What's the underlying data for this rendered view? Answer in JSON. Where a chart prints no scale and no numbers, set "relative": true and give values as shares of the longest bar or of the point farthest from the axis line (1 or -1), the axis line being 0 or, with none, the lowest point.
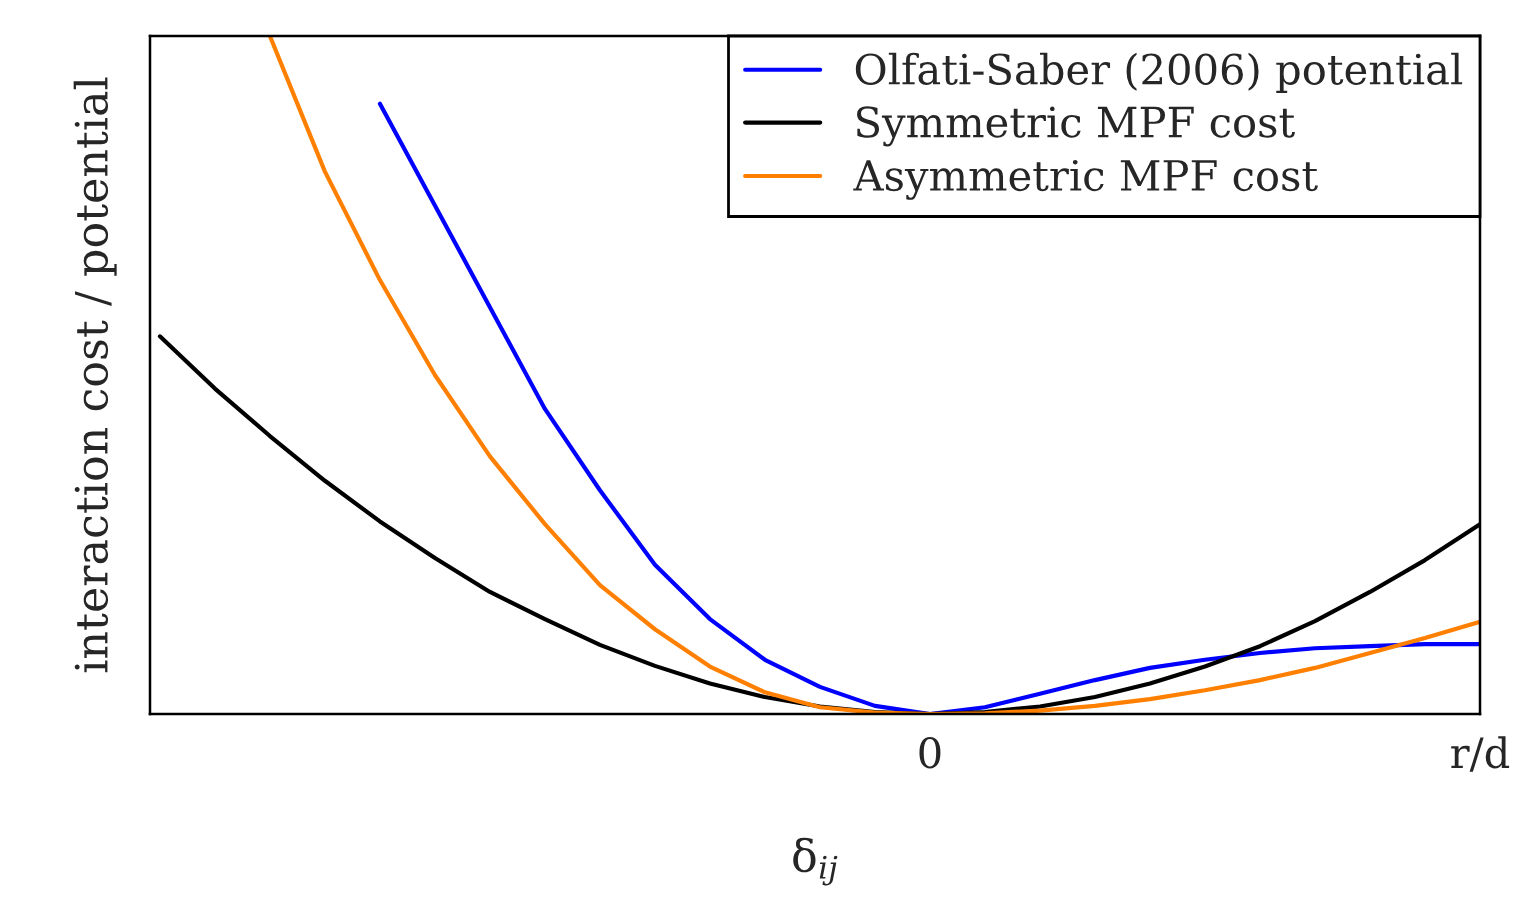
{
  "chart_data": {
    "type": "line",
    "relative": true,
    "xlabel": "δ$_{ij}$",
    "ylabel": "interaction cost / potential",
    "categories": [
      null,
      null,
      null,
      null,
      null,
      null,
      null,
      null,
      null,
      null,
      null,
      null,
      null,
      null,
      "0",
      null,
      null,
      null,
      null,
      null,
      null,
      null,
      null,
      null,
      "r/d"
    ],
    "grid": false,
    "legend": "top right",
    "marker": "none",
    "line_style": "solid",
    "series": [
      {
        "name": "Olfati-Saber (2006) potential",
        "color": "#0000ff",
        "values": [
          null,
          null,
          null,
          null,
          0.9,
          0.75,
          0.6,
          0.45,
          0.33,
          0.22,
          0.14,
          0.08,
          0.04,
          0.012,
          0,
          0.01,
          0.03,
          0.05,
          0.068,
          0.08,
          0.09,
          0.097,
          0.1,
          0.103,
          0.103
        ]
      },
      {
        "name": "Symmetric MPF cost",
        "color": "#000000",
        "values": [
          0.557,
          0.48,
          0.41,
          0.344,
          0.284,
          0.23,
          0.18,
          0.14,
          0.102,
          0.071,
          0.045,
          0.025,
          0.011,
          0.003,
          0,
          0.003,
          0.011,
          0.025,
          0.045,
          0.07,
          0.1,
          0.137,
          0.18,
          0.227,
          0.28
        ]
      },
      {
        "name": "Asymmetric MPF cost",
        "color": "#ff8000",
        "values": [
          null,
          null,
          1,
          0.8,
          0.64,
          0.5,
          0.38,
          0.28,
          0.19,
          0.125,
          0.07,
          0.032,
          0.01,
          0.002,
          0,
          0.001,
          0.005,
          0.012,
          0.022,
          0.035,
          0.05,
          0.068,
          0.09,
          0.112,
          0.136
        ]
      }
    ]
  }
}
